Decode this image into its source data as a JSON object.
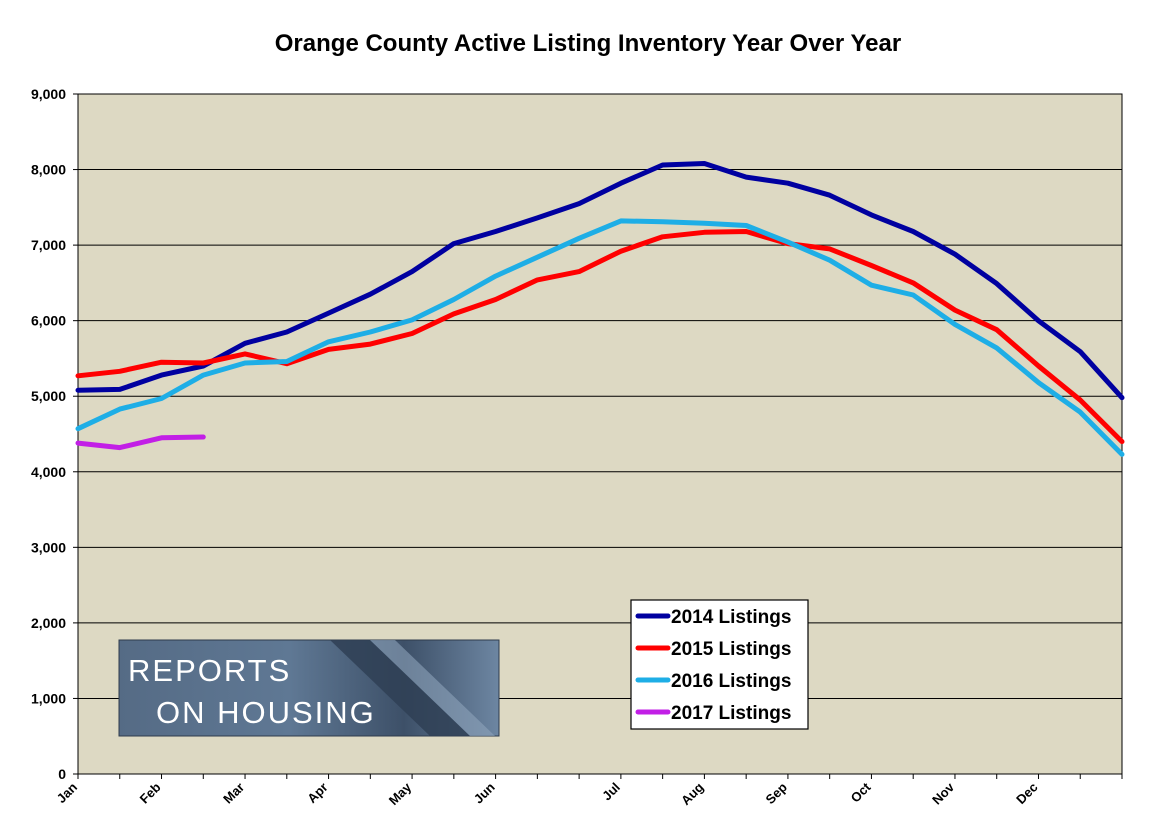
{
  "chart_data": {
    "type": "line",
    "title": "Orange County Active Listing Inventory Year Over Year",
    "xlabel": "",
    "ylabel": "",
    "ylim": [
      0,
      9000
    ],
    "yticks": [
      0,
      1000,
      2000,
      3000,
      4000,
      5000,
      6000,
      7000,
      8000,
      9000
    ],
    "ytick_labels": [
      "0",
      "1,000",
      "2,000",
      "3,000",
      "4,000",
      "5,000",
      "6,000",
      "7,000",
      "8,000",
      "9,000"
    ],
    "x_month_labels": [
      "Jan",
      "Feb",
      "Mar",
      "Apr",
      "May",
      "Jun",
      "Jul",
      "Aug",
      "Sep",
      "Oct",
      "Nov",
      "Dec"
    ],
    "x_month_label_positions": [
      0,
      2,
      4,
      6,
      8,
      10,
      13,
      15,
      17,
      19,
      21,
      23
    ],
    "x_points": 26,
    "grid": true,
    "plot_background": "#ddd9c3",
    "legend_position": "bottom-center",
    "series": [
      {
        "name": "2014 Listings",
        "color": "#0000a0",
        "values": [
          5080,
          5090,
          5280,
          5400,
          5700,
          5850,
          6100,
          6350,
          6650,
          7020,
          7180,
          7360,
          7550,
          7820,
          8060,
          8080,
          7900,
          7820,
          7660,
          7400,
          7180,
          6880,
          6490,
          6000,
          5590,
          4980
        ]
      },
      {
        "name": "2015 Listings",
        "color": "#ff0000",
        "values": [
          5270,
          5330,
          5450,
          5440,
          5560,
          5430,
          5620,
          5690,
          5830,
          6090,
          6280,
          6540,
          6650,
          6920,
          7110,
          7170,
          7180,
          7020,
          6950,
          6730,
          6500,
          6140,
          5880,
          5400,
          4950,
          4400
        ]
      },
      {
        "name": "2016 Listings",
        "color": "#1eaee6",
        "values": [
          4570,
          4830,
          4970,
          5280,
          5440,
          5460,
          5720,
          5850,
          6010,
          6280,
          6590,
          6840,
          7090,
          7320,
          7310,
          7290,
          7260,
          7040,
          6800,
          6470,
          6340,
          5950,
          5640,
          5180,
          4790,
          4230
        ]
      },
      {
        "name": "2017 Listings",
        "color": "#c21fe6",
        "values": [
          4380,
          4320,
          4450,
          4460
        ]
      }
    ]
  },
  "logo": {
    "line1": "REPORTS",
    "line2": "ON HOUSING"
  }
}
